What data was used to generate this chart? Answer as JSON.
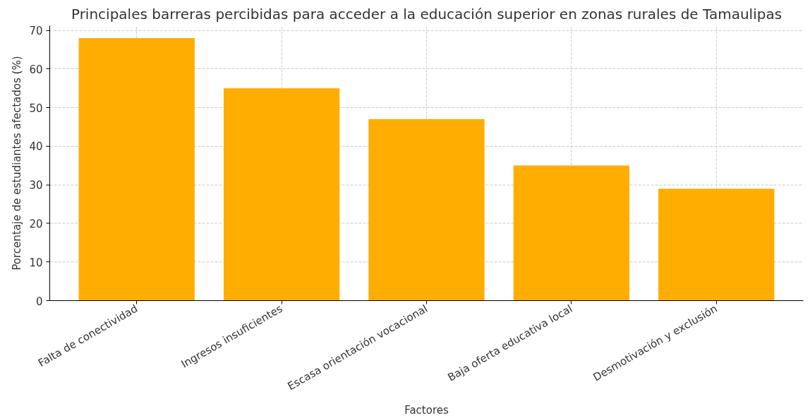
{
  "chart_data": {
    "type": "bar",
    "title": "Principales barreras percibidas para acceder a la educación superior en zonas rurales de Tamaulipas",
    "xlabel": "Factores",
    "ylabel": "Porcentaje de estudiantes afectados (%)",
    "categories": [
      "Falta de conectividad",
      "Ingresos insuficientes",
      "Escasa orientación vocacional",
      "Baja oferta educativa local",
      "Desmotivación y exclusión"
    ],
    "values": [
      68,
      55,
      47,
      35,
      29
    ],
    "color": "#ffad00",
    "ylim": [
      0,
      71.2
    ],
    "yticks": [
      0,
      10,
      20,
      30,
      40,
      50,
      60,
      70
    ],
    "grid": true
  }
}
